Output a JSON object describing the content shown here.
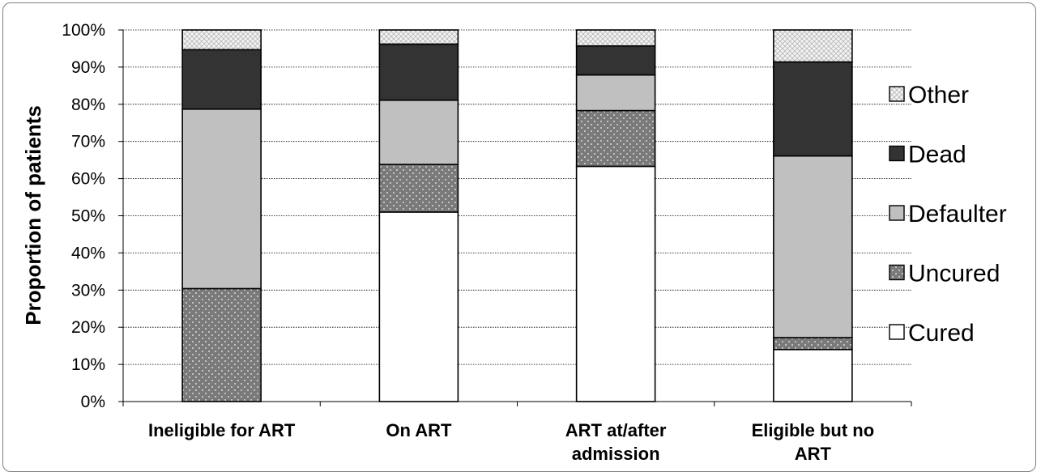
{
  "chart_data": {
    "type": "bar",
    "stacked": true,
    "percent": true,
    "ylabel": "Proportion of patients",
    "xlabel": "",
    "ylim": [
      0,
      100
    ],
    "yticks": [
      "0%",
      "10%",
      "20%",
      "30%",
      "40%",
      "50%",
      "60%",
      "70%",
      "80%",
      "90%",
      "100%"
    ],
    "categories": [
      [
        "Ineligible for ART"
      ],
      [
        "On ART"
      ],
      [
        "ART at/after",
        "admission"
      ],
      [
        "Eligible but no",
        "ART"
      ]
    ],
    "series": [
      {
        "name": "Cured",
        "color": "#ffffff",
        "pattern": "solid",
        "values": [
          0,
          51,
          63.3,
          14
        ]
      },
      {
        "name": "Uncured",
        "color": "#808080",
        "pattern": "dots",
        "values": [
          30.4,
          12.8,
          15,
          3.2
        ]
      },
      {
        "name": "Defaulter",
        "color": "#c0c0c0",
        "pattern": "solid",
        "values": [
          48.3,
          17.3,
          9.6,
          48.9
        ]
      },
      {
        "name": "Dead",
        "color": "#333333",
        "pattern": "solid",
        "values": [
          16,
          15.1,
          7.8,
          25.3
        ]
      },
      {
        "name": "Other",
        "color": "#eaeaea",
        "pattern": "crosshatch",
        "values": [
          5.3,
          3.8,
          4.3,
          8.6
        ]
      }
    ],
    "legend_position": "right",
    "legend_order": [
      "Other",
      "Dead",
      "Defaulter",
      "Uncured",
      "Cured"
    ],
    "grid": "horizontal dotted"
  }
}
